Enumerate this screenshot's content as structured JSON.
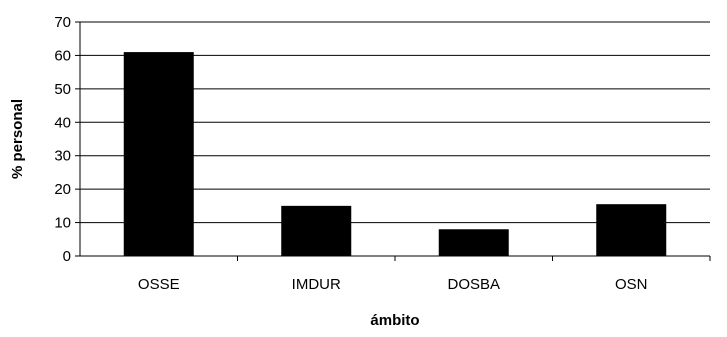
{
  "chart_data": {
    "type": "bar",
    "title": "",
    "xlabel": "ámbito",
    "ylabel": "% personal",
    "categories": [
      "OSSE",
      "IMDUR",
      "DOSBA",
      "OSN"
    ],
    "values": [
      61,
      15,
      8,
      15.5
    ],
    "ylim": [
      0,
      70
    ],
    "yticks": [
      0,
      10,
      20,
      30,
      40,
      50,
      60,
      70
    ],
    "grid": true,
    "legend": "none",
    "bar_color": "#000000",
    "grid_color": "#000000"
  }
}
